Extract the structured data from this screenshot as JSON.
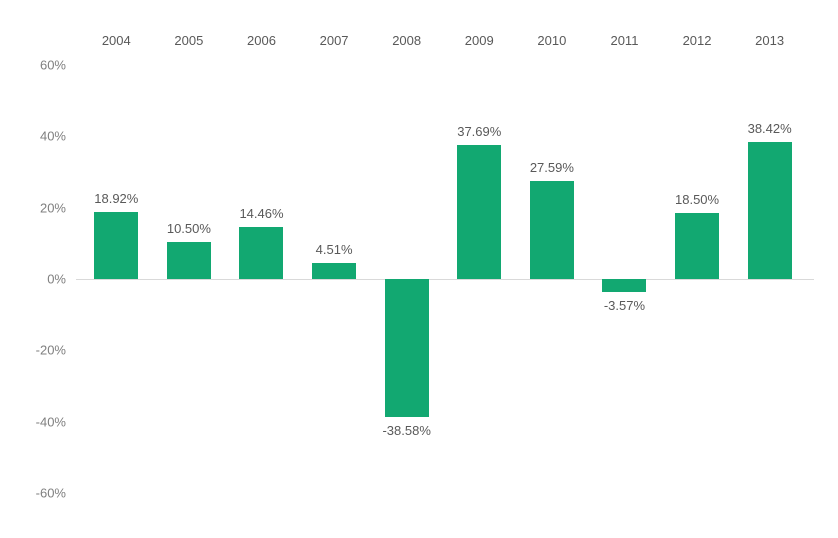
{
  "chart_data": {
    "type": "bar",
    "title": "",
    "xlabel": "",
    "ylabel": "",
    "categories": [
      "2004",
      "2005",
      "2006",
      "2007",
      "2008",
      "2009",
      "2010",
      "2011",
      "2012",
      "2013"
    ],
    "values": [
      18.92,
      10.5,
      14.46,
      4.51,
      -38.58,
      37.69,
      27.59,
      -3.57,
      18.5,
      38.42
    ],
    "labels": [
      "18.92%",
      "10.50%",
      "14.46%",
      "4.51%",
      "-38.58%",
      "37.69%",
      "27.59%",
      "-3.57%",
      "18.50%",
      "38.42%"
    ],
    "y_axis": {
      "min": -60,
      "max": 60,
      "tick_step": 20,
      "tick_values": [
        60,
        40,
        20,
        0,
        -20,
        -40,
        -60
      ],
      "tick_labels": [
        "60%",
        "40%",
        "20%",
        "0%",
        "-20%",
        "-40%",
        "-60%"
      ]
    },
    "legend_position": "none",
    "grid": "off",
    "colors": {
      "bar": "#12a871",
      "value_label": "#595959",
      "axis_label": "#7f7f7f",
      "zero_line": "#d9d9d9",
      "background": "#ffffff"
    }
  }
}
